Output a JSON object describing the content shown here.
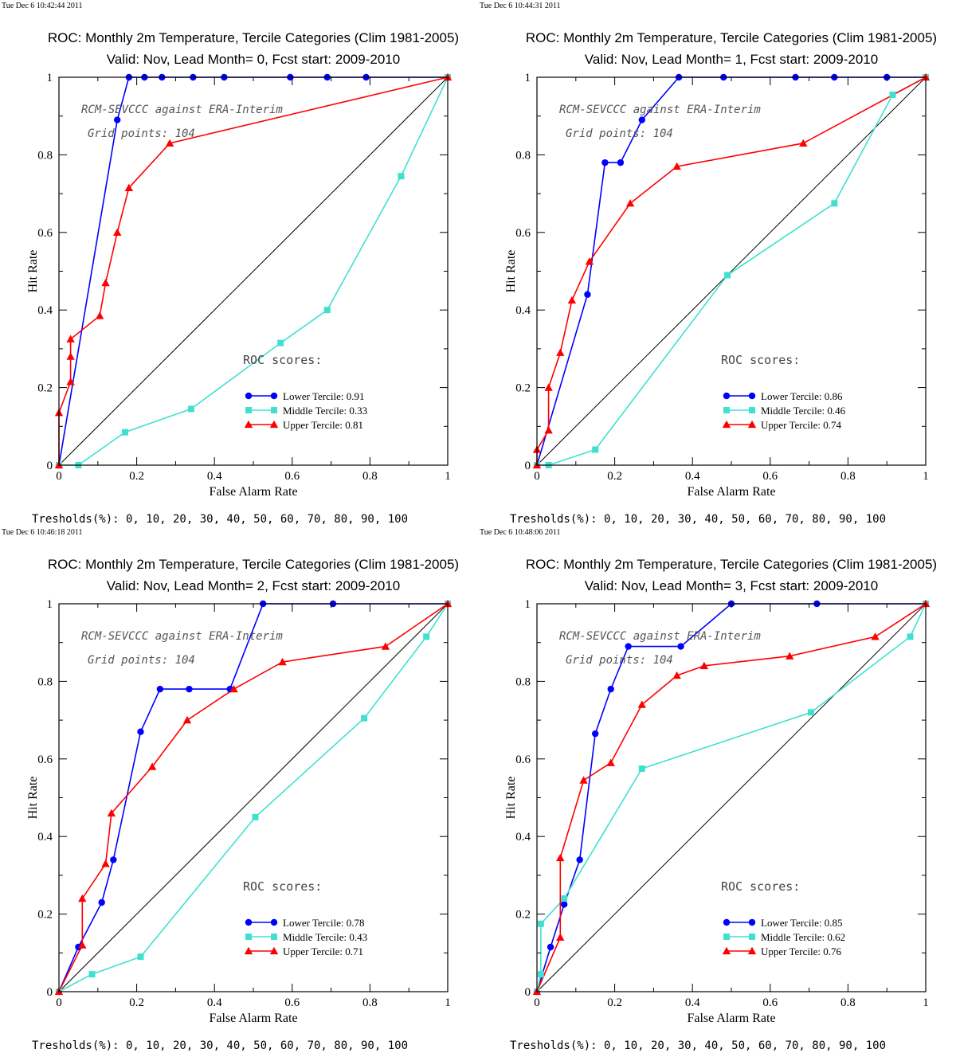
{
  "chart_data": [
    {
      "type": "line",
      "timestamp": "Tue Dec  6 10:42:44 2011",
      "title": "ROC: Monthly 2m Temperature, Tercile Categories (Clim 1981-2005)",
      "subtitle": "Valid: Nov, Lead Month= 0, Fcst start: 2009-2010",
      "xlabel": "False Alarm Rate",
      "ylabel": "Hit Rate",
      "xlim": [
        0,
        1
      ],
      "ylim": [
        0,
        1
      ],
      "x_ticks": [
        "0",
        "0.2",
        "0.4",
        "0.6",
        "0.8",
        "1"
      ],
      "y_ticks": [
        "0",
        "0.2",
        "0.4",
        "0.6",
        "0.8",
        "1"
      ],
      "annotation_1": "RCM-SEVCCC against ERA-Interim",
      "annotation_2": "Grid points:  104",
      "roc_scores_title": "ROC scores:",
      "thresholds_text": "Tresholds(%): 0, 10, 20, 30, 40, 50, 60, 70, 80, 90, 100",
      "grid": false,
      "legend_position": "lower-right",
      "diagonal": true,
      "series": [
        {
          "name": "Lower Tercile: 0.91",
          "color": "#0000ff",
          "marker": "circle",
          "points": [
            [
              0,
              0
            ],
            [
              0.15,
              0.89
            ],
            [
              0.18,
              1
            ],
            [
              0.22,
              1
            ],
            [
              0.265,
              1
            ],
            [
              0.345,
              1
            ],
            [
              0.425,
              1
            ],
            [
              0.595,
              1
            ],
            [
              0.69,
              1
            ],
            [
              0.79,
              1
            ],
            [
              1,
              1
            ]
          ]
        },
        {
          "name": "Middle Tercile: 0.33",
          "color": "#40e0d0",
          "marker": "square",
          "points": [
            [
              0,
              0
            ],
            [
              0.05,
              0
            ],
            [
              0.17,
              0.085
            ],
            [
              0.34,
              0.145
            ],
            [
              0.57,
              0.315
            ],
            [
              0.69,
              0.4
            ],
            [
              0.88,
              0.745
            ],
            [
              1,
              1
            ]
          ]
        },
        {
          "name": "Upper Tercile: 0.81",
          "color": "#ff0000",
          "marker": "triangle",
          "points": [
            [
              0,
              0
            ],
            [
              0,
              0.135
            ],
            [
              0.03,
              0.215
            ],
            [
              0.03,
              0.28
            ],
            [
              0.03,
              0.325
            ],
            [
              0.105,
              0.385
            ],
            [
              0.12,
              0.47
            ],
            [
              0.15,
              0.6
            ],
            [
              0.18,
              0.715
            ],
            [
              0.285,
              0.83
            ],
            [
              1,
              1
            ]
          ]
        }
      ]
    },
    {
      "type": "line",
      "timestamp": "Tue Dec  6 10:44:31 2011",
      "title": "ROC: Monthly 2m Temperature, Tercile Categories (Clim 1981-2005)",
      "subtitle": "Valid: Nov, Lead Month= 1, Fcst start: 2009-2010",
      "xlabel": "False Alarm Rate",
      "ylabel": "Hit Rate",
      "xlim": [
        0,
        1
      ],
      "ylim": [
        0,
        1
      ],
      "x_ticks": [
        "0",
        "0.2",
        "0.4",
        "0.6",
        "0.8",
        "1"
      ],
      "y_ticks": [
        "0",
        "0.2",
        "0.4",
        "0.6",
        "0.8",
        "1"
      ],
      "annotation_1": "RCM-SEVCCC against ERA-Interim",
      "annotation_2": "Grid points:  104",
      "roc_scores_title": "ROC scores:",
      "thresholds_text": "Tresholds(%): 0, 10, 20, 30, 40, 50, 60, 70, 80, 90, 100",
      "grid": false,
      "legend_position": "lower-right",
      "diagonal": true,
      "series": [
        {
          "name": "Lower Tercile: 0.86",
          "color": "#0000ff",
          "marker": "circle",
          "points": [
            [
              0,
              0
            ],
            [
              0.13,
              0.44
            ],
            [
              0.175,
              0.78
            ],
            [
              0.215,
              0.78
            ],
            [
              0.27,
              0.89
            ],
            [
              0.365,
              1
            ],
            [
              0.48,
              1
            ],
            [
              0.665,
              1
            ],
            [
              0.765,
              1
            ],
            [
              0.9,
              1
            ],
            [
              1,
              1
            ]
          ]
        },
        {
          "name": "Middle Tercile: 0.46",
          "color": "#40e0d0",
          "marker": "square",
          "points": [
            [
              0,
              0
            ],
            [
              0.03,
              0
            ],
            [
              0.15,
              0.04
            ],
            [
              0.49,
              0.49
            ],
            [
              0.765,
              0.675
            ],
            [
              0.915,
              0.955
            ],
            [
              1,
              1
            ]
          ]
        },
        {
          "name": "Upper Tercile: 0.74",
          "color": "#ff0000",
          "marker": "triangle",
          "points": [
            [
              0,
              0
            ],
            [
              0,
              0.04
            ],
            [
              0.03,
              0.09
            ],
            [
              0.03,
              0.2
            ],
            [
              0.06,
              0.29
            ],
            [
              0.09,
              0.425
            ],
            [
              0.135,
              0.525
            ],
            [
              0.24,
              0.675
            ],
            [
              0.36,
              0.77
            ],
            [
              0.685,
              0.83
            ],
            [
              1,
              1
            ]
          ]
        }
      ]
    },
    {
      "type": "line",
      "timestamp": "Tue Dec  6 10:46:18 2011",
      "title": "ROC: Monthly 2m Temperature, Tercile Categories (Clim 1981-2005)",
      "subtitle": "Valid: Nov, Lead Month= 2, Fcst start: 2009-2010",
      "xlabel": "False Alarm Rate",
      "ylabel": "Hit Rate",
      "xlim": [
        0,
        1
      ],
      "ylim": [
        0,
        1
      ],
      "x_ticks": [
        "0",
        "0.2",
        "0.4",
        "0.6",
        "0.8",
        "1"
      ],
      "y_ticks": [
        "0",
        "0.2",
        "0.4",
        "0.6",
        "0.8",
        "1"
      ],
      "annotation_1": "RCM-SEVCCC against ERA-Interim",
      "annotation_2": "Grid points:  104",
      "roc_scores_title": "ROC scores:",
      "thresholds_text": "Tresholds(%): 0, 10, 20, 30, 40, 50, 60, 70, 80, 90, 100",
      "grid": false,
      "legend_position": "lower-right",
      "diagonal": true,
      "series": [
        {
          "name": "Lower Tercile: 0.78",
          "color": "#0000ff",
          "marker": "circle",
          "points": [
            [
              0,
              0
            ],
            [
              0.05,
              0.115
            ],
            [
              0.11,
              0.23
            ],
            [
              0.14,
              0.34
            ],
            [
              0.21,
              0.67
            ],
            [
              0.26,
              0.78
            ],
            [
              0.335,
              0.78
            ],
            [
              0.44,
              0.78
            ],
            [
              0.525,
              1
            ],
            [
              0.705,
              1
            ],
            [
              1,
              1
            ]
          ]
        },
        {
          "name": "Middle Tercile: 0.43",
          "color": "#40e0d0",
          "marker": "square",
          "points": [
            [
              0,
              0
            ],
            [
              0.085,
              0.045
            ],
            [
              0.21,
              0.09
            ],
            [
              0.505,
              0.45
            ],
            [
              0.785,
              0.705
            ],
            [
              0.945,
              0.915
            ],
            [
              1,
              1
            ]
          ]
        },
        {
          "name": "Upper Tercile: 0.71",
          "color": "#ff0000",
          "marker": "triangle",
          "points": [
            [
              0,
              0
            ],
            [
              0.06,
              0.12
            ],
            [
              0.06,
              0.24
            ],
            [
              0.12,
              0.33
            ],
            [
              0.135,
              0.46
            ],
            [
              0.24,
              0.58
            ],
            [
              0.33,
              0.7
            ],
            [
              0.45,
              0.78
            ],
            [
              0.575,
              0.85
            ],
            [
              0.84,
              0.89
            ],
            [
              1,
              1
            ]
          ]
        }
      ]
    },
    {
      "type": "line",
      "timestamp": "Tue Dec  6 10:48:06 2011",
      "title": "ROC: Monthly 2m Temperature, Tercile Categories (Clim 1981-2005)",
      "subtitle": "Valid: Nov, Lead Month= 3, Fcst start: 2009-2010",
      "xlabel": "False Alarm Rate",
      "ylabel": "Hit Rate",
      "xlim": [
        0,
        1
      ],
      "ylim": [
        0,
        1
      ],
      "x_ticks": [
        "0",
        "0.2",
        "0.4",
        "0.6",
        "0.8",
        "1"
      ],
      "y_ticks": [
        "0",
        "0.2",
        "0.4",
        "0.6",
        "0.8",
        "1"
      ],
      "annotation_1": "RCM-SEVCCC against ERA-Interim",
      "annotation_2": "Grid points:  104",
      "roc_scores_title": "ROC scores:",
      "thresholds_text": "Tresholds(%): 0, 10, 20, 30, 40, 50, 60, 70, 80, 90, 100",
      "grid": false,
      "legend_position": "lower-right",
      "diagonal": true,
      "series": [
        {
          "name": "Lower Tercile: 0.85",
          "color": "#0000ff",
          "marker": "circle",
          "points": [
            [
              0,
              0
            ],
            [
              0.035,
              0.115
            ],
            [
              0.07,
              0.225
            ],
            [
              0.11,
              0.34
            ],
            [
              0.15,
              0.665
            ],
            [
              0.19,
              0.78
            ],
            [
              0.235,
              0.89
            ],
            [
              0.37,
              0.89
            ],
            [
              0.5,
              1
            ],
            [
              0.72,
              1
            ],
            [
              1,
              1
            ]
          ]
        },
        {
          "name": "Middle Tercile: 0.62",
          "color": "#40e0d0",
          "marker": "square",
          "points": [
            [
              0,
              0
            ],
            [
              0.01,
              0.045
            ],
            [
              0.01,
              0.175
            ],
            [
              0.07,
              0.24
            ],
            [
              0.27,
              0.575
            ],
            [
              0.705,
              0.72
            ],
            [
              0.96,
              0.915
            ],
            [
              1,
              1
            ]
          ]
        },
        {
          "name": "Upper Tercile: 0.76",
          "color": "#ff0000",
          "marker": "triangle",
          "points": [
            [
              0,
              0
            ],
            [
              0.06,
              0.14
            ],
            [
              0.06,
              0.345
            ],
            [
              0.12,
              0.545
            ],
            [
              0.19,
              0.59
            ],
            [
              0.27,
              0.74
            ],
            [
              0.36,
              0.815
            ],
            [
              0.43,
              0.84
            ],
            [
              0.65,
              0.865
            ],
            [
              0.87,
              0.915
            ],
            [
              1,
              1
            ]
          ]
        }
      ]
    }
  ]
}
